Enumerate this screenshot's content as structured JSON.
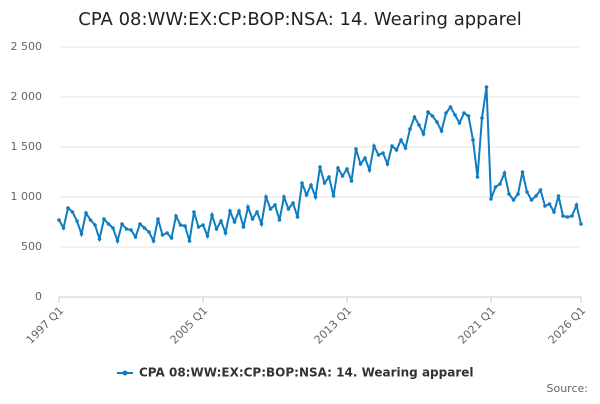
{
  "chart_data": {
    "type": "line",
    "title": "CPA 08:WW:EX:CP:BOP:NSA: 14. Wearing apparel",
    "source": "Source:",
    "categories": [
      "1997 Q1",
      null,
      null,
      null,
      null,
      null,
      null,
      null,
      null,
      null,
      null,
      null,
      null,
      null,
      null,
      null,
      null,
      null,
      null,
      null,
      null,
      null,
      null,
      null,
      null,
      null,
      null,
      null,
      null,
      null,
      null,
      null,
      "2005 Q1",
      null,
      null,
      null,
      null,
      null,
      null,
      null,
      null,
      null,
      null,
      null,
      null,
      null,
      null,
      null,
      null,
      null,
      null,
      null,
      null,
      null,
      null,
      null,
      null,
      null,
      null,
      null,
      null,
      null,
      null,
      null,
      "2013 Q1",
      null,
      null,
      null,
      null,
      null,
      null,
      null,
      null,
      null,
      null,
      null,
      null,
      null,
      null,
      null,
      null,
      null,
      null,
      null,
      null,
      null,
      null,
      null,
      null,
      null,
      null,
      null,
      null,
      null,
      null,
      null,
      "2021 Q1",
      null,
      null,
      null,
      null,
      null,
      null,
      null,
      null,
      null,
      null,
      null,
      null,
      null,
      null,
      null,
      null,
      null,
      null,
      null,
      "2026 Q1"
    ],
    "series": [
      {
        "name": "CPA 08:WW:EX:CP:BOP:NSA: 14. Wearing apparel",
        "color": "#0e7dc1",
        "values": [
          770,
          690,
          890,
          850,
          760,
          630,
          840,
          770,
          720,
          580,
          780,
          730,
          690,
          560,
          730,
          680,
          670,
          600,
          730,
          690,
          650,
          560,
          780,
          620,
          640,
          590,
          810,
          720,
          710,
          560,
          850,
          700,
          720,
          610,
          820,
          680,
          760,
          640,
          860,
          750,
          860,
          700,
          900,
          780,
          850,
          730,
          1000,
          880,
          920,
          770,
          1000,
          880,
          940,
          800,
          1140,
          1020,
          1120,
          1000,
          1300,
          1140,
          1200,
          1010,
          1290,
          1210,
          1280,
          1160,
          1480,
          1330,
          1390,
          1270,
          1510,
          1420,
          1440,
          1330,
          1510,
          1470,
          1570,
          1490,
          1680,
          1800,
          1720,
          1630,
          1850,
          1810,
          1750,
          1660,
          1840,
          1900,
          1820,
          1740,
          1840,
          1810,
          1570,
          1200,
          1790,
          2100,
          980,
          1100,
          1130,
          1240,
          1030,
          970,
          1030,
          1250,
          1050,
          970,
          1010,
          1070,
          910,
          930,
          850,
          1010,
          810,
          800,
          810,
          920,
          730
        ]
      }
    ],
    "ylim": [
      0,
      2500
    ],
    "yticks": [
      0,
      500,
      {
        "value": 1000,
        "label": "1 000"
      },
      {
        "value": 1500,
        "label": "1 500"
      },
      {
        "value": 2000,
        "label": "2 000"
      },
      {
        "value": 2500,
        "label": "2 500"
      }
    ],
    "grid": true
  }
}
